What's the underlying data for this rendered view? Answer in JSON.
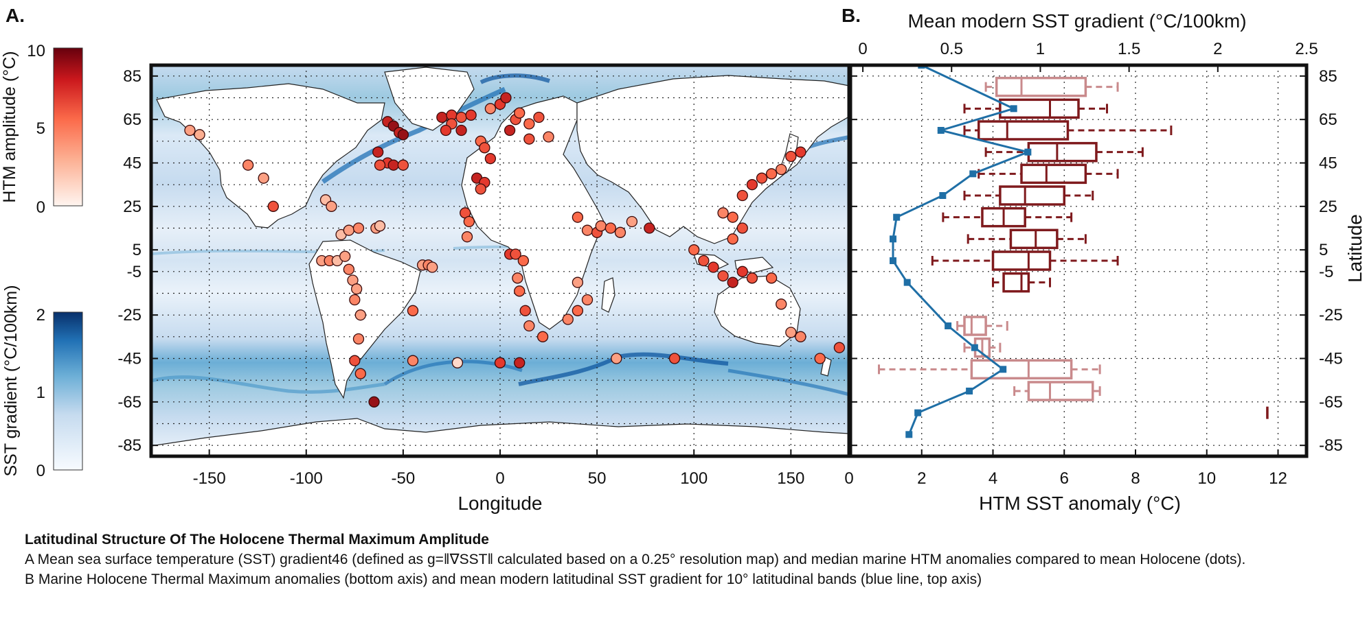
{
  "panel_a": {
    "label": "A.",
    "xlabel": "Longitude",
    "x_ticks": [
      -150,
      -100,
      -50,
      0,
      50,
      100,
      150
    ],
    "y_ticks": [
      85,
      65,
      45,
      25,
      5,
      -5,
      -25,
      -45,
      -65,
      -85
    ],
    "colorbar_htm": {
      "label": "HTM amplitude (°C)",
      "ticks": [
        0,
        5,
        10
      ],
      "range": [
        0,
        10
      ],
      "colormap": [
        "#fff5f0",
        "#fcae91",
        "#fb6a4a",
        "#de2d26",
        "#67000d"
      ]
    },
    "colorbar_grad": {
      "label": "SST gradient (°C/100km)",
      "ticks": [
        0,
        1,
        2
      ],
      "range": [
        0,
        2
      ],
      "colormap": [
        "#f7fbff",
        "#c6dbef",
        "#6baed6",
        "#2171b5",
        "#08306b"
      ]
    }
  },
  "panel_b": {
    "label": "B.",
    "top_label": "Mean modern SST gradient (°C/100km)",
    "top_ticks": [
      "0",
      "0.5",
      "1",
      "1.5",
      "2",
      "2.5"
    ],
    "bottom_label": "HTM SST anomaly (°C)",
    "bottom_ticks": [
      "0",
      "2",
      "4",
      "6",
      "8",
      "10",
      "12"
    ],
    "right_label": "Latitude",
    "right_ticks": [
      85,
      65,
      45,
      25,
      5,
      -5,
      -25,
      -45,
      -65,
      -85
    ]
  },
  "caption": {
    "title": "Latitudinal Structure Of The Holocene Thermal Maximum Amplitude",
    "line_a": "A Mean sea surface temperature (SST) gradient46 (defined as g=‖∇SST‖ calculated based on a 0.25° resolution map) and median marine HTM anomalies compared to mean Holocene (dots).",
    "line_b": "B Marine Holocene Thermal Maximum anomalies (bottom axis) and mean modern latitudinal SST gradient for 10° latitudinal bands (blue line, top axis)"
  },
  "chart_data": [
    {
      "type": "scatter",
      "title": "",
      "xlabel": "Longitude",
      "ylabel": "",
      "xlim": [
        -180,
        180
      ],
      "ylim": [
        -90,
        90
      ],
      "grid": true,
      "points_lon_lat_amplitude": [
        [
          -160,
          60,
          3
        ],
        [
          -155,
          58,
          2.5
        ],
        [
          -130,
          44,
          4
        ],
        [
          -122,
          38,
          3
        ],
        [
          -117,
          25,
          6
        ],
        [
          -90,
          28,
          2
        ],
        [
          -87,
          25,
          3
        ],
        [
          -82,
          12,
          2
        ],
        [
          -78,
          14,
          3
        ],
        [
          -73,
          15,
          4
        ],
        [
          -64,
          15,
          3
        ],
        [
          -62,
          16,
          2
        ],
        [
          -92,
          0,
          3
        ],
        [
          -88,
          0,
          4
        ],
        [
          -84,
          0,
          2
        ],
        [
          -80,
          2,
          3
        ],
        [
          -78,
          -4,
          4
        ],
        [
          -76,
          -9,
          3
        ],
        [
          -74,
          -13,
          3
        ],
        [
          -75,
          -18,
          4
        ],
        [
          -72,
          -25,
          3
        ],
        [
          -73,
          -36,
          4
        ],
        [
          -75,
          -46,
          6
        ],
        [
          -72,
          -52,
          5
        ],
        [
          -65,
          -65,
          9
        ],
        [
          -40,
          -2,
          3
        ],
        [
          -37,
          -2,
          4
        ],
        [
          -35,
          -3,
          3
        ],
        [
          -45,
          -23,
          5
        ],
        [
          -45,
          -46,
          4
        ],
        [
          -58,
          64,
          8
        ],
        [
          -55,
          62,
          9
        ],
        [
          -52,
          59,
          8
        ],
        [
          -50,
          58,
          9
        ],
        [
          -63,
          50,
          8
        ],
        [
          -58,
          45,
          7
        ],
        [
          -62,
          44,
          6
        ],
        [
          -55,
          44,
          8
        ],
        [
          -50,
          44,
          6
        ],
        [
          -30,
          66,
          8
        ],
        [
          -25,
          67,
          7
        ],
        [
          -20,
          66,
          6
        ],
        [
          -15,
          67,
          7
        ],
        [
          -25,
          63,
          6
        ],
        [
          -20,
          60,
          8
        ],
        [
          -28,
          60,
          7
        ],
        [
          -10,
          55,
          5
        ],
        [
          -8,
          52,
          6
        ],
        [
          -5,
          47,
          7
        ],
        [
          -12,
          38,
          8
        ],
        [
          -8,
          36,
          7
        ],
        [
          -10,
          33,
          6
        ],
        [
          5,
          60,
          8
        ],
        [
          8,
          65,
          6
        ],
        [
          10,
          68,
          5
        ],
        [
          0,
          72,
          7
        ],
        [
          3,
          75,
          8
        ],
        [
          -5,
          70,
          4
        ],
        [
          15,
          56,
          6
        ],
        [
          15,
          63,
          5
        ],
        [
          20,
          66,
          6
        ],
        [
          25,
          57,
          4
        ],
        [
          -18,
          22,
          6
        ],
        [
          -16,
          18,
          5
        ],
        [
          -17,
          11,
          4
        ],
        [
          5,
          3,
          7
        ],
        [
          8,
          3,
          6
        ],
        [
          12,
          0,
          5
        ],
        [
          9,
          -8,
          4
        ],
        [
          10,
          -14,
          5
        ],
        [
          13,
          -23,
          6
        ],
        [
          15,
          -30,
          4
        ],
        [
          22,
          -35,
          5
        ],
        [
          40,
          20,
          5
        ],
        [
          45,
          14,
          4
        ],
        [
          50,
          13,
          6
        ],
        [
          52,
          16,
          4
        ],
        [
          57,
          15,
          5
        ],
        [
          62,
          13,
          4
        ],
        [
          68,
          18,
          3
        ],
        [
          77,
          15,
          8
        ],
        [
          40,
          -10,
          3
        ],
        [
          45,
          -18,
          4
        ],
        [
          40,
          -23,
          5
        ],
        [
          35,
          -27,
          4
        ],
        [
          60,
          -45,
          3
        ],
        [
          90,
          -45,
          6
        ],
        [
          100,
          5,
          5
        ],
        [
          105,
          0,
          6
        ],
        [
          110,
          -3,
          7
        ],
        [
          115,
          -7,
          6
        ],
        [
          120,
          -10,
          8
        ],
        [
          125,
          -5,
          7
        ],
        [
          130,
          -8,
          6
        ],
        [
          120,
          10,
          5
        ],
        [
          125,
          15,
          6
        ],
        [
          120,
          20,
          5
        ],
        [
          115,
          22,
          4
        ],
        [
          125,
          30,
          6
        ],
        [
          130,
          35,
          7
        ],
        [
          135,
          38,
          6
        ],
        [
          140,
          40,
          5
        ],
        [
          145,
          42,
          4
        ],
        [
          150,
          48,
          6
        ],
        [
          155,
          50,
          7
        ],
        [
          140,
          -8,
          5
        ],
        [
          145,
          -20,
          4
        ],
        [
          150,
          -33,
          3
        ],
        [
          155,
          -35,
          4
        ],
        [
          165,
          -45,
          5
        ],
        [
          175,
          -40,
          6
        ],
        [
          0,
          -47,
          7
        ],
        [
          10,
          -47,
          8
        ],
        [
          -22,
          -47,
          1
        ]
      ]
    },
    {
      "type": "box",
      "title": "",
      "xlabel": "HTM SST anomaly (°C)",
      "ylabel": "Latitude",
      "xlim": [
        0,
        12.8
      ],
      "ylim": [
        -90,
        90
      ],
      "grid": true,
      "boxes": [
        {
          "lat": 80,
          "whisker_low": 3.8,
          "q1": 4.1,
          "median": 4.8,
          "q3": 6.6,
          "whisker_high": 7.5,
          "style": "light"
        },
        {
          "lat": 70,
          "whisker_low": 3.2,
          "q1": 4.2,
          "median": 5.6,
          "q3": 6.4,
          "whisker_high": 7.2,
          "style": "dark"
        },
        {
          "lat": 60,
          "whisker_low": 3.2,
          "q1": 3.6,
          "median": 4.4,
          "q3": 6.1,
          "whisker_high": 9.0,
          "style": "dark"
        },
        {
          "lat": 50,
          "whisker_low": 3.8,
          "q1": 5.0,
          "median": 5.8,
          "q3": 6.9,
          "whisker_high": 8.2,
          "style": "dark"
        },
        {
          "lat": 40,
          "whisker_low": 3.6,
          "q1": 4.8,
          "median": 5.5,
          "q3": 6.6,
          "whisker_high": 7.5,
          "style": "dark"
        },
        {
          "lat": 30,
          "whisker_low": 3.2,
          "q1": 4.2,
          "median": 4.9,
          "q3": 6.0,
          "whisker_high": 6.8,
          "style": "dark"
        },
        {
          "lat": 20,
          "whisker_low": 2.6,
          "q1": 3.7,
          "median": 4.3,
          "q3": 4.9,
          "whisker_high": 6.2,
          "style": "dark"
        },
        {
          "lat": 10,
          "whisker_low": 3.3,
          "q1": 4.5,
          "median": 5.2,
          "q3": 5.8,
          "whisker_high": 6.6,
          "style": "dark"
        },
        {
          "lat": 0,
          "whisker_low": 2.3,
          "q1": 4.0,
          "median": 5.0,
          "q3": 5.6,
          "whisker_high": 7.5,
          "style": "dark"
        },
        {
          "lat": -10,
          "whisker_low": 4.0,
          "q1": 4.3,
          "median": 4.8,
          "q3": 5.0,
          "whisker_high": 5.6,
          "style": "dark"
        },
        {
          "lat": -30,
          "whisker_low": 3.0,
          "q1": 3.2,
          "median": 3.4,
          "q3": 3.8,
          "whisker_high": 4.4,
          "style": "light"
        },
        {
          "lat": -40,
          "whisker_low": 3.2,
          "q1": 3.5,
          "median": 3.7,
          "q3": 3.9,
          "whisker_high": 4.2,
          "style": "light"
        },
        {
          "lat": -50,
          "whisker_low": 0.8,
          "q1": 3.4,
          "median": 5.0,
          "q3": 6.2,
          "whisker_high": 7.0,
          "style": "light"
        },
        {
          "lat": -60,
          "whisker_low": 4.6,
          "q1": 5.0,
          "median": 5.6,
          "q3": 6.8,
          "whisker_high": 7.0,
          "style": "light"
        },
        {
          "lat": -70,
          "whisker_low": 11.7,
          "q1": 11.7,
          "median": 11.7,
          "q3": 11.7,
          "whisker_high": 11.7,
          "style": "dark"
        }
      ],
      "series": [
        {
          "axis": "top",
          "x_unit": "°C/100km",
          "xlim": [
            -0.07,
            2.5
          ],
          "points": [
            {
              "lat": 90,
              "gradient": 0.33
            },
            {
              "lat": 70,
              "gradient": 0.85
            },
            {
              "lat": 60,
              "gradient": 0.44
            },
            {
              "lat": 50,
              "gradient": 0.93
            },
            {
              "lat": 40,
              "gradient": 0.62
            },
            {
              "lat": 30,
              "gradient": 0.45
            },
            {
              "lat": 20,
              "gradient": 0.19
            },
            {
              "lat": 10,
              "gradient": 0.17
            },
            {
              "lat": 0,
              "gradient": 0.17
            },
            {
              "lat": -10,
              "gradient": 0.25
            },
            {
              "lat": -30,
              "gradient": 0.48
            },
            {
              "lat": -40,
              "gradient": 0.63
            },
            {
              "lat": -50,
              "gradient": 0.79
            },
            {
              "lat": -60,
              "gradient": 0.6
            },
            {
              "lat": -70,
              "gradient": 0.31
            },
            {
              "lat": -80,
              "gradient": 0.26
            }
          ]
        }
      ]
    }
  ]
}
